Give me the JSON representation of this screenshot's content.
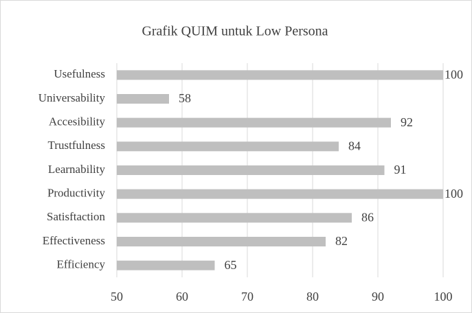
{
  "chart_data": {
    "type": "hbar",
    "title": "Grafik QUIM untuk Low Persona",
    "categories": [
      "Usefulness",
      "Universability",
      "Accesibility",
      "Trustfulness",
      "Learnability",
      "Productivity",
      "Satisftaction",
      "Effectiveness",
      "Efficiency"
    ],
    "values": [
      100,
      58,
      92,
      84,
      91,
      100,
      86,
      82,
      65
    ],
    "color": "#bfbfbf",
    "xlim": [
      50,
      100
    ],
    "xticks": [
      50,
      60,
      70,
      80,
      90,
      100
    ],
    "grid": true
  }
}
